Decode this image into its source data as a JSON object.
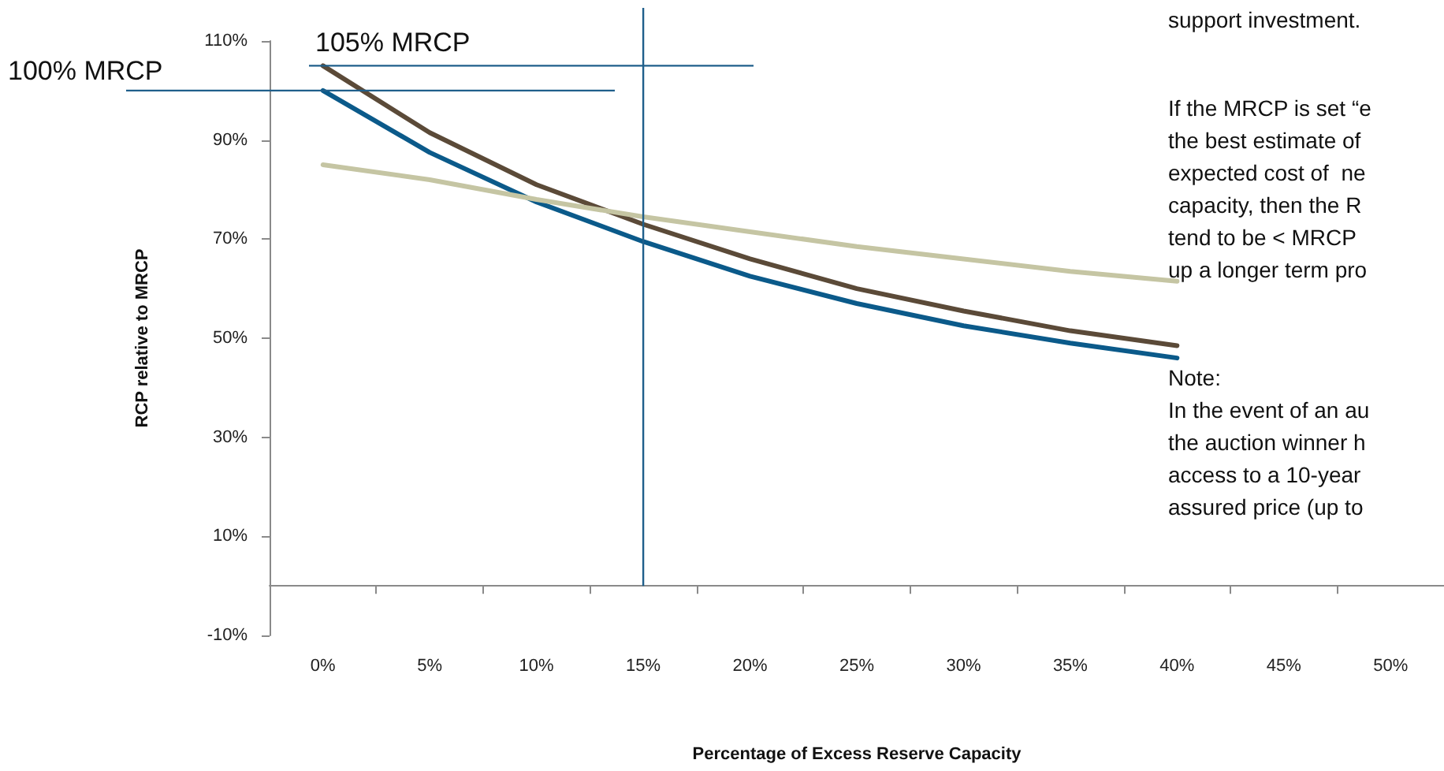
{
  "chart_data": {
    "type": "line",
    "xlabel": "Percentage of Excess Reserve Capacity",
    "ylabel": "RCP relative to MRCP",
    "categories": [
      "0%",
      "5%",
      "10%",
      "15%",
      "20%",
      "25%",
      "30%",
      "35%",
      "40%",
      "45%",
      "50%"
    ],
    "series": [
      {
        "color": "#0b5a8a",
        "values": [
          100,
          87.5,
          77.5,
          69.5,
          62.5,
          57,
          52.5,
          49,
          46,
          null,
          null
        ]
      },
      {
        "color": "#5b4a38",
        "values": [
          105,
          91.5,
          81,
          73,
          66,
          60,
          55.5,
          51.5,
          48.5,
          null,
          null
        ]
      },
      {
        "color": "#c5c5a3",
        "values": [
          85,
          82,
          78,
          74.5,
          71.5,
          68.5,
          66,
          63.5,
          61.5,
          null,
          null
        ]
      }
    ],
    "ylim": [
      -10,
      110
    ],
    "yticks": [
      {
        "value": -10,
        "label": "-10%"
      },
      {
        "value": 10,
        "label": "10%"
      },
      {
        "value": 30,
        "label": "30%"
      },
      {
        "value": 50,
        "label": "50%"
      },
      {
        "value": 70,
        "label": "70%"
      },
      {
        "value": 90,
        "label": "90%"
      },
      {
        "value": 110,
        "label": "110%"
      }
    ],
    "ref_lines": [
      {
        "axis": "y",
        "value": 100,
        "label": "100% MRCP",
        "color": "#1f5f8b"
      },
      {
        "axis": "y",
        "value": 105,
        "label": "105% MRCP",
        "color": "#1f5f8b"
      },
      {
        "axis": "x",
        "value": "15%",
        "label": null,
        "color": "#1f5f8b"
      }
    ],
    "annotations": [
      "support investment.",
      "If the MRCP is set “e\nthe best estimate of\nexpected cost of  ne\ncapacity, then the R\ntend to be < MRCP\nup a longer term pro",
      "Note:\nIn the event of an au\nthe auction winner h\naccess to a 10-year\nassured price (up to"
    ],
    "grid": false,
    "marker": "none",
    "line_style": "solid"
  }
}
